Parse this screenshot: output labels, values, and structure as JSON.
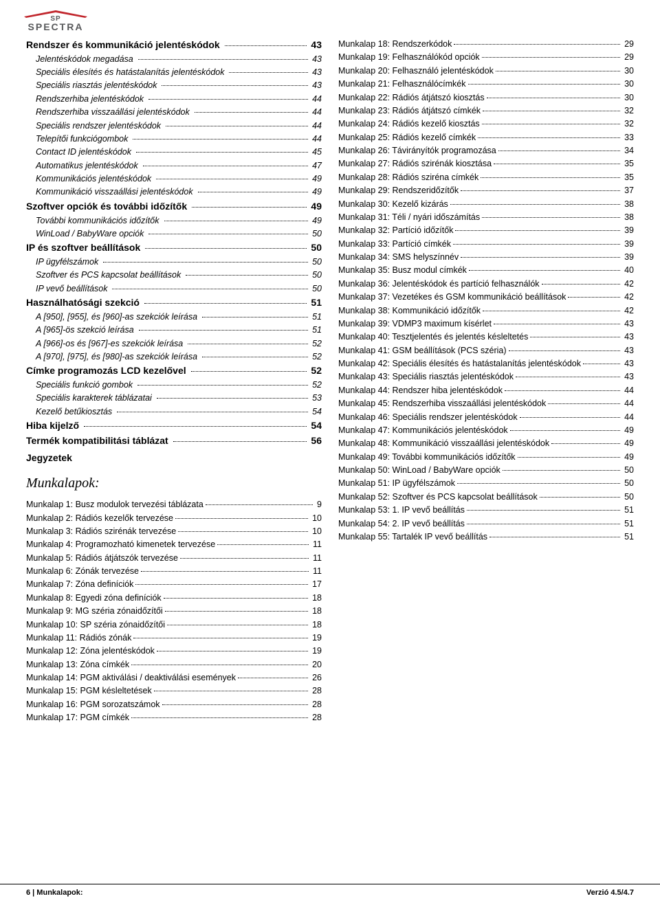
{
  "logo": {
    "top_text": "SP",
    "bottom_text": "SPECTRA",
    "roof_color": "#c1272d",
    "text_color": "#58595b"
  },
  "left_toc": [
    {
      "lvl": "h1",
      "label": "Rendszer és kommunikáció jelentéskódok",
      "page": "43"
    },
    {
      "lvl": "h2",
      "label": "Jelentéskódok megadása",
      "page": "43"
    },
    {
      "lvl": "h2",
      "label": "Speciális élesítés és hatástalanítás jelentéskódok",
      "page": "43"
    },
    {
      "lvl": "h2",
      "label": "Speciális riasztás jelentéskódok",
      "page": "43"
    },
    {
      "lvl": "h2",
      "label": "Rendszerhiba jelentéskódok",
      "page": "44"
    },
    {
      "lvl": "h2",
      "label": "Rendszerhiba visszaállási jelentéskódok",
      "page": "44"
    },
    {
      "lvl": "h2",
      "label": "Speciális rendszer jelentéskódok",
      "page": "44"
    },
    {
      "lvl": "h2",
      "label": "Telepítői funkciógombok",
      "page": "44"
    },
    {
      "lvl": "h2",
      "label": "Contact ID jelentéskódok",
      "page": "45"
    },
    {
      "lvl": "h2",
      "label": "Automatikus jelentéskódok",
      "page": "47"
    },
    {
      "lvl": "h2",
      "label": "Kommunikációs jelentéskódok",
      "page": "49"
    },
    {
      "lvl": "h2",
      "label": "Kommunikáció visszaállási jelentéskódok",
      "page": "49"
    },
    {
      "lvl": "h1",
      "label": "Szoftver opciók és további időzítők",
      "page": "49"
    },
    {
      "lvl": "h2",
      "label": "További kommunikációs időzítők",
      "page": "49"
    },
    {
      "lvl": "h2",
      "label": "WinLoad / BabyWare opciók",
      "page": "50"
    },
    {
      "lvl": "h1",
      "label": "IP és szoftver beállítások",
      "page": "50"
    },
    {
      "lvl": "h2",
      "label": "IP ügyfélszámok",
      "page": "50"
    },
    {
      "lvl": "h2",
      "label": "Szoftver és PCS kapcsolat beállítások",
      "page": "50"
    },
    {
      "lvl": "h2",
      "label": "IP vevő beállítások",
      "page": "50"
    },
    {
      "lvl": "h1",
      "label": "Használhatósági szekció",
      "page": "51"
    },
    {
      "lvl": "h2",
      "label": "A [950], [955], és [960]-as szekciók leírása",
      "page": "51"
    },
    {
      "lvl": "h2",
      "label": "A [965]-ös szekció leírása",
      "page": "51"
    },
    {
      "lvl": "h2",
      "label": "A [966]-os és [967]-es szekciók leírása",
      "page": "52"
    },
    {
      "lvl": "h2",
      "label": "A [970], [975], és [980]-as szekciók leírása",
      "page": "52"
    },
    {
      "lvl": "h1",
      "label": "Címke programozás LCD kezelővel",
      "page": "52"
    },
    {
      "lvl": "h2",
      "label": "Speciális funkció gombok",
      "page": "52"
    },
    {
      "lvl": "h2",
      "label": "Speciális karakterek táblázatai",
      "page": "53"
    },
    {
      "lvl": "h2",
      "label": "Kezelő betűkiosztás",
      "page": "54"
    },
    {
      "lvl": "h1",
      "label": "Hiba kijelző",
      "page": "54"
    },
    {
      "lvl": "h1",
      "label": "Termék kompatibilitási táblázat",
      "page": "56"
    }
  ],
  "jegyzetek_label": "Jegyzetek",
  "munkalapok_label": "Munkalapok:",
  "munkalapok_left": [
    {
      "label": "Munkalap 1:  Busz modulok tervezési táblázata",
      "page": "9"
    },
    {
      "label": "Munkalap 2:  Rádiós kezelők tervezése",
      "page": "10"
    },
    {
      "label": "Munkalap 3:  Rádiós szirénák tervezése",
      "page": "10"
    },
    {
      "label": "Munkalap 4:  Programozható kimenetek tervezése",
      "page": "11"
    },
    {
      "label": "Munkalap 5:  Rádiós átjátszók tervezése",
      "page": "11"
    },
    {
      "label": "Munkalap 6:  Zónák tervezése",
      "page": "11"
    },
    {
      "label": "Munkalap 7:  Zóna definíciók",
      "page": "17"
    },
    {
      "label": "Munkalap 8:  Egyedi zóna definíciók",
      "page": "18"
    },
    {
      "label": "Munkalap 9:  MG széria zónaidőzítői",
      "page": "18"
    },
    {
      "label": "Munkalap 10:  SP széria zónaidőzítői",
      "page": "18"
    },
    {
      "label": "Munkalap 11:  Rádiós zónák",
      "page": "19"
    },
    {
      "label": "Munkalap 12:  Zóna jelentéskódok",
      "page": "19"
    },
    {
      "label": "Munkalap 13:  Zóna címkék",
      "page": "20"
    },
    {
      "label": "Munkalap 14:  PGM aktiválási / deaktiválási események",
      "page": "26"
    },
    {
      "label": "Munkalap 15:  PGM késleltetések",
      "page": "28"
    },
    {
      "label": "Munkalap 16:  PGM sorozatszámok",
      "page": "28"
    },
    {
      "label": "Munkalap 17:  PGM címkék",
      "page": "28"
    }
  ],
  "munkalapok_right": [
    {
      "label": "Munkalap 18:  Rendszerkódok",
      "page": "29"
    },
    {
      "label": "Munkalap 19:  Felhasználókód opciók",
      "page": "29"
    },
    {
      "label": "Munkalap 20:   Felhasználó jelentéskódok",
      "page": "30"
    },
    {
      "label": "Munkalap 21:  Felhasználócímkék",
      "page": "30"
    },
    {
      "label": "Munkalap 22:  Rádiós átjátszó kiosztás",
      "page": "30"
    },
    {
      "label": "Munkalap 23:  Rádiós átjátszó címkék",
      "page": "32"
    },
    {
      "label": "Munkalap 24:  Rádiós kezelő kiosztás",
      "page": "32"
    },
    {
      "label": "Munkalap 25:  Rádiós kezelő címkék",
      "page": "33"
    },
    {
      "label": "Munkalap 26:  Távirányítók programozása",
      "page": "34"
    },
    {
      "label": "Munkalap 27:  Rádiós szirénák kiosztása",
      "page": "35"
    },
    {
      "label": "Munkalap 28:  Rádiós sziréna címkék",
      "page": "35"
    },
    {
      "label": "Munkalap 29:  Rendszeridőzítők",
      "page": "37"
    },
    {
      "label": "Munkalap 30:  Kezelő kizárás",
      "page": "38"
    },
    {
      "label": "Munkalap 31:  Téli / nyári időszámítás",
      "page": "38"
    },
    {
      "label": "Munkalap 32:  Partíció időzítők",
      "page": "39"
    },
    {
      "label": "Munkalap 33:  Partíció címkék",
      "page": "39"
    },
    {
      "label": "Munkalap 34:  SMS helyszínnév",
      "page": "39"
    },
    {
      "label": "Munkalap 35:  Busz modul címkék",
      "page": "40"
    },
    {
      "label": "Munkalap 36:  Jelentéskódok és partíció felhasználók",
      "page": "42"
    },
    {
      "label": "Munkalap 37:  Vezetékes és GSM kommunikáció beállítások",
      "page": "42"
    },
    {
      "label": "Munkalap 38:   Kommunikáció időzítők",
      "page": "42"
    },
    {
      "label": "Munkalap 39:  VDMP3 maximum kísérlet",
      "page": "43"
    },
    {
      "label": "Munkalap 40:  Tesztjelentés és jelentés késleltetés",
      "page": "43"
    },
    {
      "label": "Munkalap 41:  GSM beállítások (PCS széria)",
      "page": "43"
    },
    {
      "label": "Munkalap 42:  Speciális élesítés és hatástalanítás jelentéskódok",
      "page": "43"
    },
    {
      "label": "Munkalap 43:  Speciális riasztás jelentéskódok",
      "page": "43"
    },
    {
      "label": "Munkalap 44:  Rendszer hiba jelentéskódok",
      "page": "44"
    },
    {
      "label": "Munkalap 45:  Rendszerhiba visszaállási jelentéskódok",
      "page": "44"
    },
    {
      "label": "Munkalap 46:  Speciális rendszer jelentéskódok",
      "page": "44"
    },
    {
      "label": "Munkalap 47:  Kommunikációs jelentéskódok",
      "page": "49"
    },
    {
      "label": "Munkalap 48:  Kommunikáció visszaállási jelentéskódok",
      "page": "49"
    },
    {
      "label": "Munkalap 49:  További kommunikációs időzítők",
      "page": "49"
    },
    {
      "label": "Munkalap 50:  WinLoad / BabyWare opciók",
      "page": "50"
    },
    {
      "label": "Munkalap 51:   IP ügyfélszámok",
      "page": "50"
    },
    {
      "label": "Munkalap 52:  Szoftver és PCS kapcsolat beállítások",
      "page": "50"
    },
    {
      "label": "Munkalap 53:  1. IP vevő beállítás",
      "page": "51"
    },
    {
      "label": "Munkalap 54:  2. IP vevő beállítás",
      "page": "51"
    },
    {
      "label": "Munkalap 55:  Tartalék IP vevő beállítás",
      "page": "51"
    }
  ],
  "footer": {
    "left": "6 | Munkalapok:",
    "right": "Verzió 4.5/4.7"
  }
}
